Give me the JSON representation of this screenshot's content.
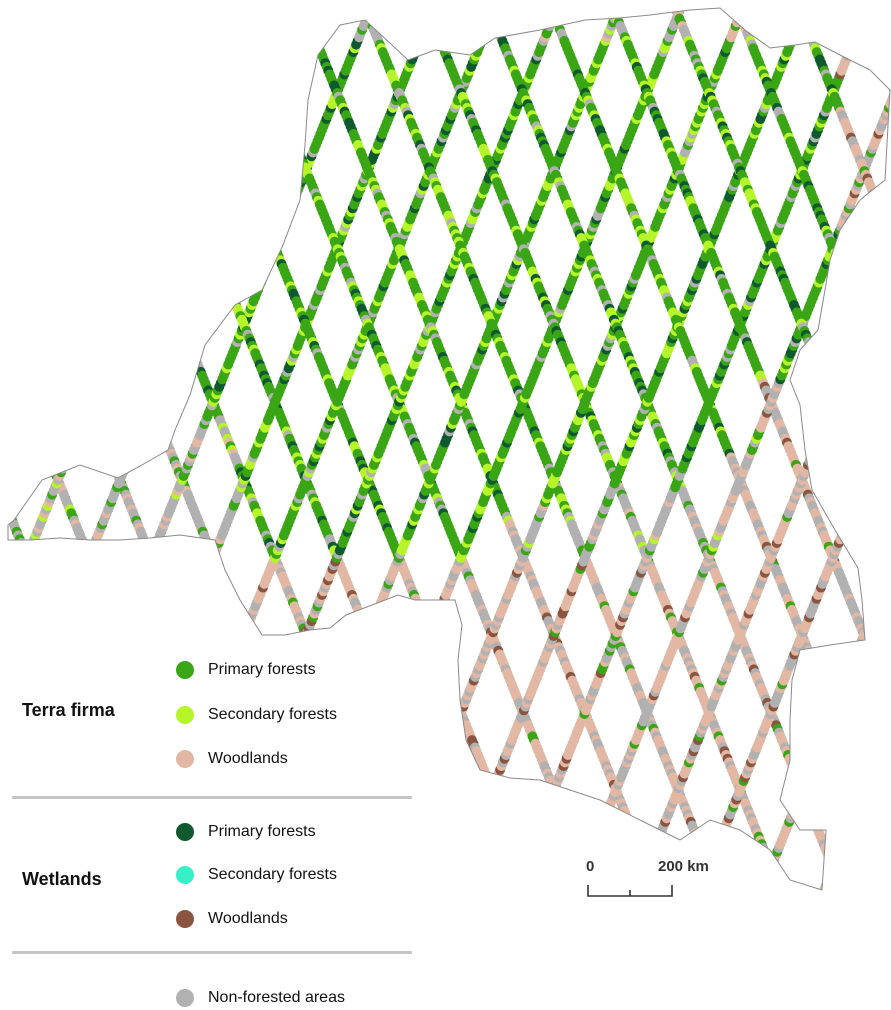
{
  "legend": {
    "terra_firma": {
      "label": "Terra firma",
      "items": [
        {
          "label": "Primary forests",
          "color": "#3aa515"
        },
        {
          "label": "Secondary forests",
          "color": "#b5f52a"
        },
        {
          "label": "Woodlands",
          "color": "#e2b8a4"
        }
      ]
    },
    "wetlands": {
      "label": "Wetlands",
      "items": [
        {
          "label": "Primary forests",
          "color": "#0e5a2e"
        },
        {
          "label": "Secondary forests",
          "color": "#38f0c8"
        },
        {
          "label": "Woodlands",
          "color": "#8a5540"
        }
      ]
    },
    "non_forested": {
      "label": "Non-forested areas",
      "color": "#b1b1b1"
    }
  },
  "scale": {
    "start_label": "0",
    "end_label": "200 km"
  }
}
